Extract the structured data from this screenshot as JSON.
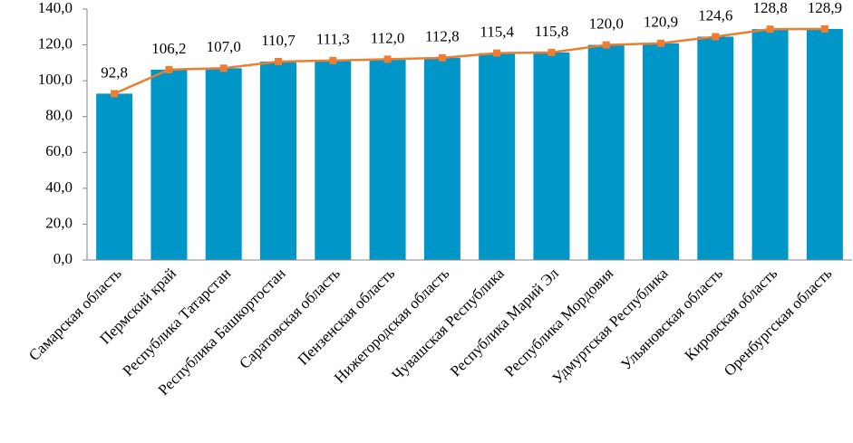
{
  "chart_data": {
    "type": "bar",
    "categories": [
      "Самарская область",
      "Пермский край",
      "Республика Татарстан",
      "Республика Башкортостан",
      "Саратовская область",
      "Пензенская область",
      "Нижегородская область",
      "Чувашская Республика",
      "Республика Марий Эл",
      "Республика Мордовия",
      "Удмуртская Республика",
      "Ульяновская область",
      "Кировская область",
      "Оренбургская область"
    ],
    "values": [
      92.8,
      106.2,
      107.0,
      110.7,
      111.3,
      112.0,
      112.8,
      115.4,
      115.8,
      120.0,
      120.9,
      124.6,
      128.8,
      128.9
    ],
    "value_labels": [
      "92,8",
      "106,2",
      "107,0",
      "110,7",
      "111,3",
      "112,0",
      "112,8",
      "115,4",
      "115,8",
      "120,0",
      "120,9",
      "124,6",
      "128,8",
      "128,9"
    ],
    "color": "#0096c8",
    "line_color": "#ed7d31",
    "ylim": [
      0,
      140
    ],
    "yticks": [
      {
        "value": 0,
        "label": "0,0"
      },
      {
        "value": 20,
        "label": "20,0"
      },
      {
        "value": 40,
        "label": "40,0"
      },
      {
        "value": 60,
        "label": "60,0"
      },
      {
        "value": 80,
        "label": "80,0"
      },
      {
        "value": 100,
        "label": "100,0"
      },
      {
        "value": 120,
        "label": "120,0"
      },
      {
        "value": 140,
        "label": "140,0"
      }
    ]
  }
}
